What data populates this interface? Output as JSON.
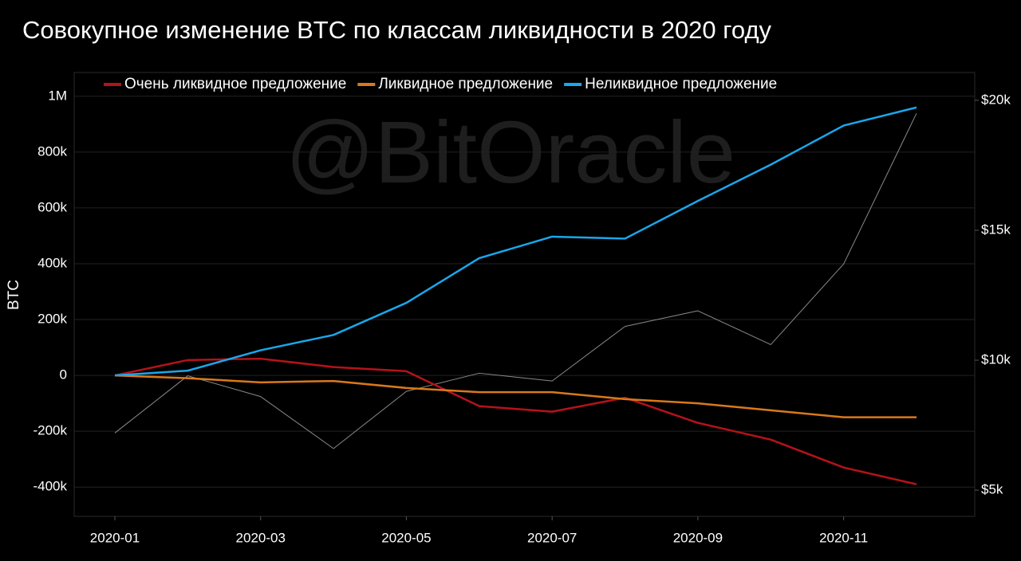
{
  "chart_data": {
    "type": "line",
    "title": "Совокупное изменение BTC по классам ликвидности в 2020 году",
    "watermark": "@BitOracle",
    "ylabel": "BTC",
    "x": [
      "2020-01",
      "2020-02",
      "2020-03",
      "2020-04",
      "2020-05",
      "2020-06",
      "2020-07",
      "2020-08",
      "2020-09",
      "2020-10",
      "2020-11",
      "2020-12"
    ],
    "series": [
      {
        "name": "Очень ликвидное предложение",
        "color": "#b5121b",
        "values": [
          0,
          55000,
          60000,
          30000,
          15000,
          -110000,
          -130000,
          -80000,
          -170000,
          -230000,
          -330000,
          -390000
        ]
      },
      {
        "name": "Ликвидное предложение",
        "color": "#d9791a",
        "values": [
          0,
          -10000,
          -25000,
          -20000,
          -45000,
          -60000,
          -60000,
          -85000,
          -100000,
          -125000,
          -150000,
          -150000
        ]
      },
      {
        "name": "Неликвидное предложение",
        "color": "#1aa7ec",
        "values": [
          0,
          17000,
          90000,
          145000,
          260000,
          420000,
          497000,
          490000,
          625000,
          755000,
          895000,
          960000
        ]
      },
      {
        "color": "#8a8a8a",
        "axis": "y2",
        "values": [
          7200,
          9400,
          8600,
          6600,
          8800,
          9500,
          9200,
          11300,
          11900,
          10600,
          13700,
          19500
        ]
      }
    ],
    "xlim": [
      "2020-01",
      "2020-12"
    ],
    "xticks": [
      "2020-01",
      "2020-03",
      "2020-05",
      "2020-07",
      "2020-09",
      "2020-11"
    ],
    "ylim": [
      -505000,
      1085000
    ],
    "yticks": [
      {
        "value": 1000000,
        "label": "1M"
      },
      {
        "value": 800000,
        "label": "800k"
      },
      {
        "value": 600000,
        "label": "600k"
      },
      {
        "value": 400000,
        "label": "400k"
      },
      {
        "value": 200000,
        "label": "200k"
      },
      0,
      {
        "value": -200000,
        "label": "-200k"
      },
      {
        "value": -400000,
        "label": "-400k"
      }
    ],
    "y2lim": [
      3990,
      21070
    ],
    "y2ticks": [
      {
        "value": 20000,
        "label": "$20k"
      },
      {
        "value": 15000,
        "label": "$15k"
      },
      {
        "value": 10000,
        "label": "$10k"
      },
      {
        "value": 5000,
        "label": "$5k"
      }
    ],
    "grid": true
  }
}
